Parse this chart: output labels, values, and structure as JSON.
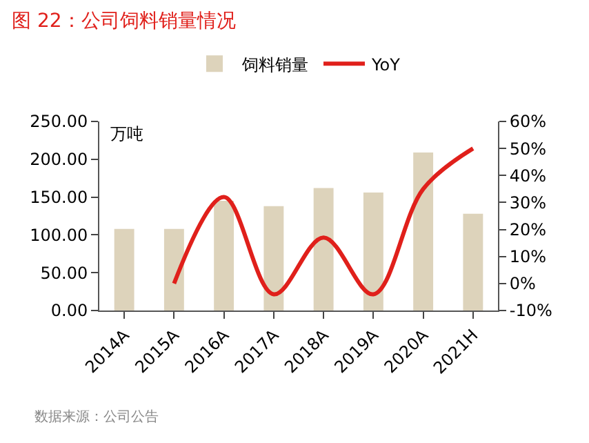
{
  "chart_data": {
    "type": "bar",
    "title": "图 22：公司饲料销量情况",
    "ylabel": "万吨",
    "categories": [
      "2014A",
      "2015A",
      "2016A",
      "2017A",
      "2018A",
      "2019A",
      "2020A",
      "2021H"
    ],
    "series": [
      {
        "name": "饲料销量",
        "color": "#ddd3bb",
        "values": [
          108,
          108,
          145,
          138,
          162,
          156,
          209,
          128
        ]
      },
      {
        "name": "YoY",
        "type": "line",
        "axis": "y2",
        "color": "#e0201b",
        "values": [
          null,
          0,
          32,
          -4,
          17,
          -4,
          35,
          50
        ]
      }
    ],
    "ylim": [
      0,
      250
    ],
    "yticks": [
      {
        "value": 0,
        "label": "0.00"
      },
      {
        "value": 50,
        "label": "50.00"
      },
      {
        "value": 100,
        "label": "100.00"
      },
      {
        "value": 150,
        "label": "150.00"
      },
      {
        "value": 200,
        "label": "200.00"
      },
      {
        "value": 250,
        "label": "250.00"
      }
    ],
    "y2lim": [
      -10,
      60
    ],
    "y2ticks": [
      {
        "value": -10,
        "label": "-10%"
      },
      {
        "value": 0,
        "label": "0%"
      },
      {
        "value": 10,
        "label": "10%"
      },
      {
        "value": 20,
        "label": "20%"
      },
      {
        "value": 30,
        "label": "30%"
      },
      {
        "value": 40,
        "label": "40%"
      },
      {
        "value": 50,
        "label": "50%"
      },
      {
        "value": 60,
        "label": "60%"
      }
    ],
    "grid": false,
    "legend": "top",
    "marker": "none",
    "annotations": [
      "数据来源：公司公告"
    ]
  }
}
